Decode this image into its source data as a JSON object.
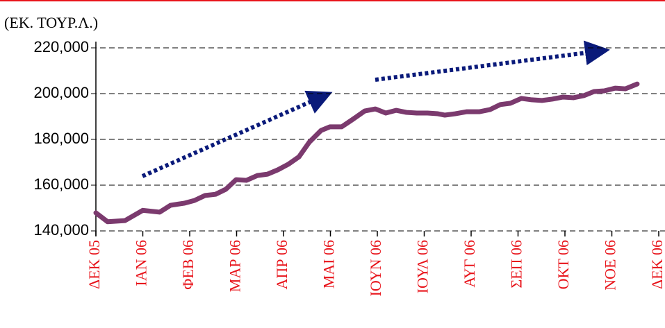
{
  "chart_data": {
    "type": "line",
    "ylabel": "(ΕΚ. ΤΟΥΡ.Λ.)",
    "x": [
      0,
      0.25,
      0.62,
      1.0,
      1.36,
      1.59,
      1.88,
      2.1,
      2.33,
      2.55,
      2.77,
      2.99,
      3.21,
      3.44,
      3.66,
      3.88,
      4.1,
      4.33,
      4.55,
      4.8,
      4.99,
      5.24,
      5.48,
      5.73,
      5.96,
      6.18,
      6.4,
      6.62,
      6.84,
      7.07,
      7.29,
      7.44,
      7.66,
      7.91,
      8.18,
      8.4,
      8.62,
      8.84,
      9.07,
      9.29,
      9.51,
      9.73,
      9.96,
      10.18,
      10.4,
      10.62,
      10.84,
      11.07,
      11.29,
      11.54
    ],
    "series": [
      {
        "color": "#7b3a6e",
        "values": [
          147900,
          144000,
          144500,
          149000,
          148200,
          151200,
          152100,
          153300,
          155500,
          156000,
          158200,
          162400,
          162100,
          164200,
          164800,
          166700,
          169100,
          172400,
          178800,
          183900,
          185500,
          185500,
          188800,
          192400,
          193300,
          191500,
          192700,
          191800,
          191500,
          191500,
          191200,
          190600,
          191200,
          192100,
          192100,
          193000,
          195200,
          195800,
          197900,
          197300,
          197000,
          197600,
          198500,
          198200,
          199100,
          200900,
          201200,
          202400,
          202100,
          204200
        ]
      }
    ],
    "xlim": [
      0,
      12
    ],
    "xticks": [
      {
        "value": 0,
        "label": "ΔΕΚ 05"
      },
      {
        "value": 1,
        "label": "ΙΑΝ 06"
      },
      {
        "value": 2,
        "label": "ΦΕΒ 06"
      },
      {
        "value": 3,
        "label": "ΜΑΡ 06"
      },
      {
        "value": 4,
        "label": "ΑΠΡ 06"
      },
      {
        "value": 5,
        "label": "ΜΑΙ 06"
      },
      {
        "value": 6,
        "label": "ΙΟΥΝ 06"
      },
      {
        "value": 7,
        "label": "ΙΟΥΛ 06"
      },
      {
        "value": 8,
        "label": "ΑΥΓ 06"
      },
      {
        "value": 9,
        "label": "ΣΕΠ 06"
      },
      {
        "value": 10,
        "label": "ΟΚΤ 06"
      },
      {
        "value": 11,
        "label": "ΝΟΕ 06"
      },
      {
        "value": 12,
        "label": "ΔΕΚ 06"
      }
    ],
    "ylim": [
      140000,
      220000
    ],
    "yticks": [
      {
        "value": 140000,
        "label": "140,000"
      },
      {
        "value": 160000,
        "label": "160,000"
      },
      {
        "value": 180000,
        "label": "180,000"
      },
      {
        "value": 200000,
        "label": "200,000"
      },
      {
        "value": 220000,
        "label": "220,000"
      }
    ],
    "grid": true
  }
}
